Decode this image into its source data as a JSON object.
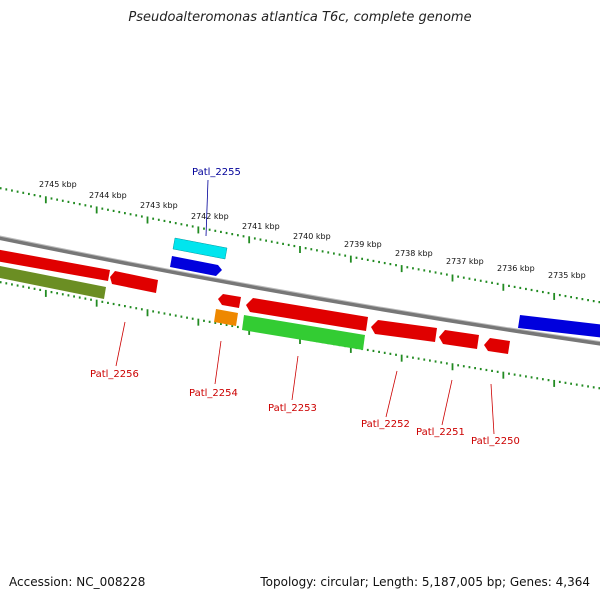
{
  "title": "Pseudoalteromonas atlantica T6c, complete genome",
  "footer": {
    "accession": "Accession: NC_008228",
    "summary": "Topology: circular; Length: 5,187,005 bp; Genes: 4,364"
  },
  "kbp_labels": [
    "2745 kbp",
    "2744 kbp",
    "2743 kbp",
    "2742 kbp",
    "2741 kbp",
    "2740 kbp",
    "2739 kbp",
    "2738 kbp",
    "2737 kbp",
    "2736 kbp",
    "2735 kbp"
  ],
  "genes": [
    {
      "id": "Patl_2255",
      "color": "#0000aa"
    },
    {
      "id": "Patl_2256",
      "color": "#cc0000"
    },
    {
      "id": "Patl_2254",
      "color": "#cc0000"
    },
    {
      "id": "Patl_2253",
      "color": "#cc0000"
    },
    {
      "id": "Patl_2252",
      "color": "#cc0000"
    },
    {
      "id": "Patl_2251",
      "color": "#cc0000"
    },
    {
      "id": "Patl_2250",
      "color": "#cc0000"
    }
  ],
  "colors": {
    "backbone": "#777777",
    "tick": "#228b22",
    "red_gene": "#e00000",
    "blue_gene": "#0000dd",
    "cyan_gene": "#00e5ee",
    "green_gene": "#33cc33",
    "olive_gene": "#6b8e23",
    "orange_gene": "#ee8800"
  }
}
